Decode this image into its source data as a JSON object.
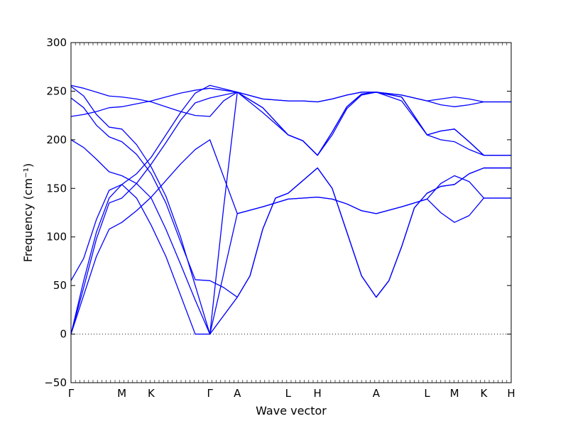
{
  "chart_data": {
    "type": "line",
    "xlabel": "Wave vector",
    "ylabel": "Frequency (cm⁻¹)",
    "ylim": [
      -50,
      300
    ],
    "yticks": [
      -50,
      0,
      50,
      100,
      150,
      200,
      250,
      300
    ],
    "xlim": [
      0,
      4.5
    ],
    "grid": false,
    "line_color": "#0000ff",
    "zero_line": {
      "y": 0,
      "style": "dotted",
      "color": "#000000"
    },
    "high_symmetry_points": [
      {
        "label": "Γ",
        "x": 0.0
      },
      {
        "label": "M",
        "x": 0.52
      },
      {
        "label": "K",
        "x": 0.82
      },
      {
        "label": "Γ",
        "x": 1.42
      },
      {
        "label": "A",
        "x": 1.7
      },
      {
        "label": "L",
        "x": 2.22
      },
      {
        "label": "H",
        "x": 2.52
      },
      {
        "label": "A",
        "x": 3.12
      },
      {
        "label": "L",
        "x": 3.64
      },
      {
        "label": "M",
        "x": 3.92
      },
      {
        "label": "K",
        "x": 4.22
      },
      {
        "label": "H",
        "x": 4.5
      }
    ],
    "series": [
      {
        "values": [
          [
            0,
            0
          ],
          [
            0.13,
            55
          ],
          [
            0.26,
            105
          ],
          [
            0.39,
            140
          ],
          [
            0.52,
            154
          ],
          [
            0.67,
            165
          ],
          [
            0.82,
            182
          ],
          [
            0.97,
            205
          ],
          [
            1.12,
            228
          ],
          [
            1.27,
            248
          ],
          [
            1.42,
            256
          ],
          [
            1.7,
            249
          ],
          [
            1.96,
            233
          ],
          [
            2.22,
            205
          ],
          [
            2.37,
            199
          ],
          [
            2.52,
            184
          ],
          [
            2.67,
            208
          ],
          [
            2.82,
            234
          ],
          [
            2.97,
            247
          ],
          [
            3.12,
            249
          ],
          [
            3.38,
            244
          ],
          [
            3.64,
            205
          ],
          [
            3.78,
            209
          ],
          [
            3.92,
            211
          ],
          [
            4.07,
            198
          ],
          [
            4.22,
            184
          ],
          [
            4.5,
            184
          ]
        ]
      },
      {
        "values": [
          [
            0,
            0
          ],
          [
            0.13,
            48
          ],
          [
            0.26,
            98
          ],
          [
            0.39,
            135
          ],
          [
            0.52,
            140
          ],
          [
            0.67,
            155
          ],
          [
            0.82,
            175
          ],
          [
            0.97,
            197
          ],
          [
            1.12,
            220
          ],
          [
            1.27,
            238
          ],
          [
            1.42,
            243
          ],
          [
            1.7,
            249
          ],
          [
            1.96,
            228
          ],
          [
            2.22,
            205
          ],
          [
            2.37,
            199
          ],
          [
            2.52,
            184
          ],
          [
            2.67,
            205
          ],
          [
            2.82,
            232
          ],
          [
            2.97,
            246
          ],
          [
            3.12,
            249
          ],
          [
            3.38,
            240
          ],
          [
            3.64,
            205
          ],
          [
            3.78,
            200
          ],
          [
            3.92,
            198
          ],
          [
            4.07,
            190
          ],
          [
            4.22,
            184
          ],
          [
            4.5,
            184
          ]
        ]
      },
      {
        "values": [
          [
            0,
            0
          ],
          [
            0.13,
            40
          ],
          [
            0.26,
            80
          ],
          [
            0.39,
            108
          ],
          [
            0.52,
            115
          ],
          [
            0.67,
            127
          ],
          [
            0.82,
            141
          ],
          [
            0.97,
            158
          ],
          [
            1.12,
            175
          ],
          [
            1.27,
            190
          ],
          [
            1.42,
            200
          ],
          [
            1.7,
            124
          ],
          [
            1.96,
            131
          ],
          [
            2.22,
            139
          ],
          [
            2.37,
            140
          ],
          [
            2.52,
            141
          ],
          [
            2.67,
            139
          ],
          [
            2.82,
            134
          ],
          [
            2.97,
            127
          ],
          [
            3.12,
            124
          ],
          [
            3.38,
            131
          ],
          [
            3.64,
            139
          ],
          [
            3.78,
            125
          ],
          [
            3.92,
            115
          ],
          [
            4.07,
            122
          ],
          [
            4.22,
            140
          ],
          [
            4.5,
            140
          ]
        ]
      },
      {
        "values": [
          [
            0,
            55
          ],
          [
            0.13,
            78
          ],
          [
            0.26,
            118
          ],
          [
            0.39,
            148
          ],
          [
            0.52,
            154
          ],
          [
            0.67,
            140
          ],
          [
            0.82,
            112
          ],
          [
            0.97,
            80
          ],
          [
            1.12,
            40
          ],
          [
            1.27,
            0
          ],
          [
            1.35,
            0
          ],
          [
            1.42,
            0
          ],
          [
            1.56,
            19
          ],
          [
            1.7,
            38
          ],
          [
            1.83,
            60
          ],
          [
            1.96,
            108
          ],
          [
            2.09,
            140
          ],
          [
            2.22,
            145
          ],
          [
            2.37,
            158
          ],
          [
            2.52,
            171
          ],
          [
            2.67,
            150
          ],
          [
            2.82,
            105
          ],
          [
            2.97,
            60
          ],
          [
            3.12,
            38
          ],
          [
            3.25,
            55
          ],
          [
            3.38,
            90
          ],
          [
            3.51,
            130
          ],
          [
            3.64,
            145
          ],
          [
            3.78,
            152
          ],
          [
            3.92,
            154
          ],
          [
            4.07,
            165
          ],
          [
            4.22,
            171
          ],
          [
            4.5,
            171
          ]
        ]
      },
      {
        "values": [
          [
            0,
            224
          ],
          [
            0.13,
            226
          ],
          [
            0.26,
            229
          ],
          [
            0.39,
            233
          ],
          [
            0.52,
            234
          ],
          [
            0.67,
            237
          ],
          [
            0.82,
            240
          ],
          [
            0.97,
            244
          ],
          [
            1.12,
            248
          ],
          [
            1.27,
            251
          ],
          [
            1.42,
            253
          ],
          [
            1.56,
            251
          ],
          [
            1.7,
            249
          ],
          [
            1.96,
            242
          ],
          [
            2.22,
            240
          ],
          [
            2.37,
            240
          ],
          [
            2.52,
            239
          ],
          [
            2.67,
            242
          ],
          [
            2.82,
            246
          ],
          [
            2.97,
            249
          ],
          [
            3.12,
            249
          ],
          [
            3.38,
            246
          ],
          [
            3.64,
            240
          ],
          [
            3.78,
            242
          ],
          [
            3.92,
            244
          ],
          [
            4.07,
            242
          ],
          [
            4.22,
            239
          ],
          [
            4.5,
            239
          ]
        ]
      },
      {
        "values": [
          [
            0,
            243
          ],
          [
            0.13,
            233
          ],
          [
            0.26,
            215
          ],
          [
            0.39,
            203
          ],
          [
            0.52,
            198
          ],
          [
            0.67,
            185
          ],
          [
            0.82,
            165
          ],
          [
            0.97,
            135
          ],
          [
            1.12,
            95
          ],
          [
            1.27,
            56
          ],
          [
            1.42,
            55
          ],
          [
            1.56,
            48
          ],
          [
            1.7,
            38
          ],
          [
            1.83,
            60
          ],
          [
            1.96,
            108
          ],
          [
            2.09,
            140
          ],
          [
            2.22,
            145
          ],
          [
            2.37,
            158
          ],
          [
            2.52,
            171
          ],
          [
            2.67,
            150
          ],
          [
            2.82,
            105
          ],
          [
            2.97,
            60
          ],
          [
            3.12,
            38
          ],
          [
            3.25,
            55
          ],
          [
            3.38,
            90
          ],
          [
            3.51,
            130
          ],
          [
            3.64,
            145
          ],
          [
            3.78,
            152
          ],
          [
            3.92,
            154
          ],
          [
            4.07,
            165
          ],
          [
            4.22,
            171
          ],
          [
            4.5,
            171
          ]
        ]
      },
      {
        "values": [
          [
            0,
            255
          ],
          [
            0.13,
            245
          ],
          [
            0.26,
            226
          ],
          [
            0.39,
            213
          ],
          [
            0.52,
            211
          ],
          [
            0.67,
            195
          ],
          [
            0.82,
            172
          ],
          [
            0.97,
            142
          ],
          [
            1.12,
            100
          ],
          [
            1.27,
            50
          ],
          [
            1.42,
            0
          ],
          [
            1.56,
            62
          ],
          [
            1.7,
            124
          ],
          [
            1.96,
            131
          ],
          [
            2.22,
            139
          ],
          [
            2.37,
            140
          ],
          [
            2.52,
            141
          ],
          [
            2.67,
            139
          ],
          [
            2.82,
            134
          ],
          [
            2.97,
            127
          ],
          [
            3.12,
            124
          ],
          [
            3.38,
            131
          ],
          [
            3.64,
            139
          ],
          [
            3.78,
            155
          ],
          [
            3.92,
            163
          ],
          [
            4.07,
            157
          ],
          [
            4.22,
            140
          ],
          [
            4.5,
            140
          ]
        ]
      },
      {
        "values": [
          [
            0,
            200
          ],
          [
            0.13,
            192
          ],
          [
            0.26,
            180
          ],
          [
            0.39,
            167
          ],
          [
            0.52,
            163
          ],
          [
            0.67,
            155
          ],
          [
            0.82,
            140
          ],
          [
            0.97,
            108
          ],
          [
            1.12,
            72
          ],
          [
            1.27,
            35
          ],
          [
            1.42,
            0
          ],
          [
            1.56,
            130
          ],
          [
            1.7,
            249
          ],
          [
            1.96,
            233
          ],
          [
            2.22,
            205
          ],
          [
            2.37,
            199
          ],
          [
            2.52,
            184
          ],
          [
            2.67,
            208
          ],
          [
            2.82,
            234
          ],
          [
            2.97,
            247
          ],
          [
            3.12,
            249
          ],
          [
            3.38,
            244
          ],
          [
            3.64,
            205
          ],
          [
            3.78,
            209
          ],
          [
            3.92,
            211
          ],
          [
            4.07,
            198
          ],
          [
            4.22,
            184
          ],
          [
            4.5,
            184
          ]
        ]
      },
      {
        "values": [
          [
            0,
            256
          ],
          [
            0.13,
            253
          ],
          [
            0.26,
            249
          ],
          [
            0.39,
            245
          ],
          [
            0.52,
            244
          ],
          [
            0.67,
            242
          ],
          [
            0.82,
            239
          ],
          [
            0.97,
            234
          ],
          [
            1.12,
            229
          ],
          [
            1.27,
            225
          ],
          [
            1.42,
            224
          ],
          [
            1.56,
            240
          ],
          [
            1.7,
            249
          ],
          [
            1.96,
            242
          ],
          [
            2.22,
            240
          ],
          [
            2.37,
            240
          ],
          [
            2.52,
            239
          ],
          [
            2.67,
            242
          ],
          [
            2.82,
            246
          ],
          [
            2.97,
            249
          ],
          [
            3.12,
            249
          ],
          [
            3.38,
            246
          ],
          [
            3.64,
            240
          ],
          [
            3.78,
            236
          ],
          [
            3.92,
            234
          ],
          [
            4.07,
            236
          ],
          [
            4.22,
            239
          ],
          [
            4.5,
            239
          ]
        ]
      }
    ]
  }
}
